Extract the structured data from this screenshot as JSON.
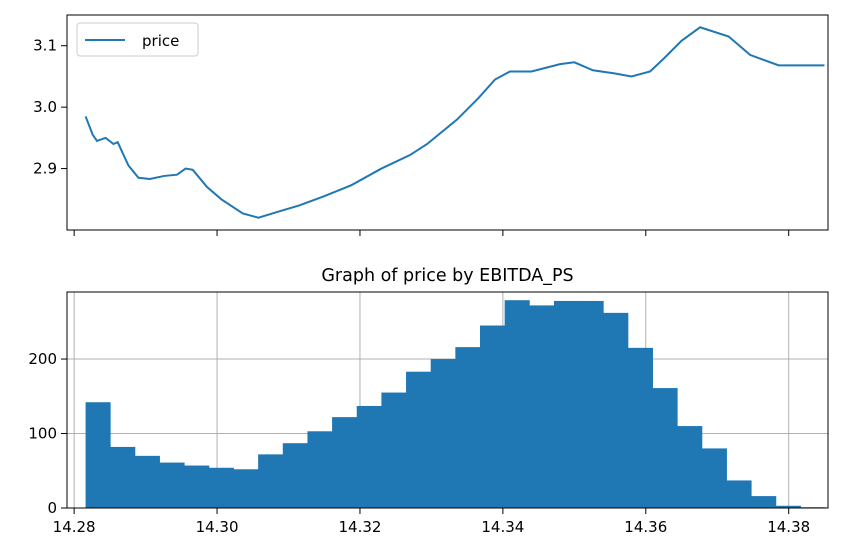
{
  "chart_data": [
    {
      "type": "line",
      "title": "",
      "xlabel": "",
      "ylabel": "",
      "ylim": [
        2.8,
        3.15
      ],
      "yticks": [
        2.9,
        3.0,
        3.1
      ],
      "ytick_labels": [
        "2.9",
        "3.0",
        "3.1"
      ],
      "xticks_shared_with_bottom": [
        14.28,
        14.3,
        14.32,
        14.34,
        14.36,
        14.38
      ],
      "legend": {
        "placement": "upper-left",
        "entries": [
          "price"
        ]
      },
      "color": "#1f77b4",
      "grid": false,
      "series": [
        {
          "name": "price",
          "x": [
            14.2816,
            14.2821,
            14.2826,
            14.2832,
            14.2844,
            14.2855,
            14.2861,
            14.2866,
            14.2876,
            14.289,
            14.2906,
            14.2926,
            14.2944,
            14.2956,
            14.2966,
            14.2986,
            14.3006,
            14.3036,
            14.3058,
            14.3086,
            14.3115,
            14.315,
            14.3188,
            14.323,
            14.327,
            14.3294,
            14.3336,
            14.3366,
            14.3389,
            14.341,
            14.344,
            14.348,
            14.35,
            14.3526,
            14.3556,
            14.358,
            14.3606,
            14.3626,
            14.365,
            14.3676,
            14.3716,
            14.3746,
            14.3786,
            14.385
          ],
          "y": [
            2.985,
            2.97,
            2.955,
            2.945,
            2.95,
            2.94,
            2.943,
            2.93,
            2.905,
            2.885,
            2.883,
            2.888,
            2.89,
            2.9,
            2.898,
            2.87,
            2.85,
            2.827,
            2.82,
            2.83,
            2.84,
            2.855,
            2.873,
            2.9,
            2.922,
            2.94,
            2.98,
            3.015,
            3.045,
            3.058,
            3.058,
            3.07,
            3.073,
            3.06,
            3.055,
            3.05,
            3.058,
            3.08,
            3.108,
            3.13,
            3.115,
            3.085,
            3.068,
            3.068
          ]
        }
      ]
    },
    {
      "type": "bar",
      "title": "Graph of price by EBITDA_PS",
      "xlabel": "",
      "ylabel": "",
      "xlim": [
        14.279,
        14.3855
      ],
      "ylim": [
        0,
        290
      ],
      "xticks": [
        14.28,
        14.3,
        14.32,
        14.34,
        14.36,
        14.38
      ],
      "xtick_labels": [
        "14.28",
        "14.30",
        "14.32",
        "14.34",
        "14.36",
        "14.38"
      ],
      "yticks": [
        0,
        100,
        200
      ],
      "ytick_labels": [
        "0",
        "100",
        "200"
      ],
      "grid": true,
      "color": "#1f77b4",
      "bin_start": 14.2816,
      "bin_width": 0.00345,
      "values": [
        142,
        82,
        70,
        61,
        57,
        54,
        52,
        72,
        87,
        103,
        122,
        137,
        155,
        183,
        200,
        216,
        245,
        279,
        272,
        278,
        278,
        262,
        215,
        161,
        110,
        80,
        37,
        16,
        3,
        1
      ]
    }
  ]
}
